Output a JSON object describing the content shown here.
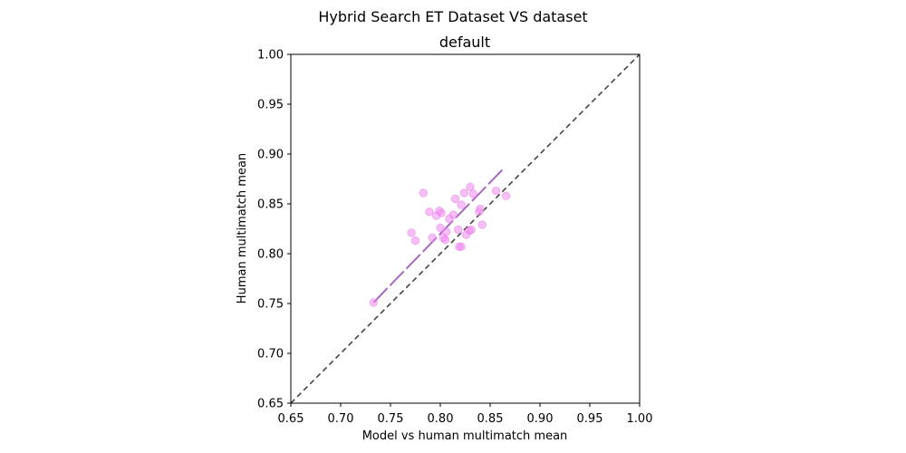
{
  "chart_data": {
    "type": "scatter",
    "title": "Hybrid Search ET Dataset VS dataset",
    "subtitle": "default",
    "xlabel": "Model vs human multimatch mean",
    "ylabel": "Human multimatch mean",
    "xlim": [
      0.65,
      1.0
    ],
    "ylim": [
      0.65,
      1.0
    ],
    "xticks": [
      "0.65",
      "0.70",
      "0.75",
      "0.80",
      "0.85",
      "0.90",
      "0.95",
      "1.00"
    ],
    "yticks": [
      "0.65",
      "0.70",
      "0.75",
      "0.80",
      "0.85",
      "0.90",
      "0.95",
      "1.00"
    ],
    "grid": false,
    "points": [
      {
        "x": 0.733,
        "y": 0.751
      },
      {
        "x": 0.771,
        "y": 0.821
      },
      {
        "x": 0.775,
        "y": 0.813
      },
      {
        "x": 0.783,
        "y": 0.861
      },
      {
        "x": 0.789,
        "y": 0.842
      },
      {
        "x": 0.792,
        "y": 0.816
      },
      {
        "x": 0.796,
        "y": 0.838
      },
      {
        "x": 0.799,
        "y": 0.843
      },
      {
        "x": 0.8,
        "y": 0.826
      },
      {
        "x": 0.801,
        "y": 0.841
      },
      {
        "x": 0.803,
        "y": 0.816
      },
      {
        "x": 0.805,
        "y": 0.814
      },
      {
        "x": 0.806,
        "y": 0.822
      },
      {
        "x": 0.809,
        "y": 0.835
      },
      {
        "x": 0.813,
        "y": 0.839
      },
      {
        "x": 0.815,
        "y": 0.855
      },
      {
        "x": 0.818,
        "y": 0.824
      },
      {
        "x": 0.819,
        "y": 0.807
      },
      {
        "x": 0.821,
        "y": 0.807
      },
      {
        "x": 0.821,
        "y": 0.849
      },
      {
        "x": 0.824,
        "y": 0.861
      },
      {
        "x": 0.826,
        "y": 0.819
      },
      {
        "x": 0.829,
        "y": 0.823
      },
      {
        "x": 0.83,
        "y": 0.867
      },
      {
        "x": 0.831,
        "y": 0.824
      },
      {
        "x": 0.833,
        "y": 0.86
      },
      {
        "x": 0.839,
        "y": 0.842
      },
      {
        "x": 0.84,
        "y": 0.845
      },
      {
        "x": 0.842,
        "y": 0.829
      },
      {
        "x": 0.856,
        "y": 0.863
      },
      {
        "x": 0.866,
        "y": 0.858
      }
    ],
    "regression_line": {
      "x": [
        0.733,
        0.864
      ],
      "y": [
        0.751,
        0.886
      ]
    },
    "reference_line": {
      "x": [
        0.65,
        1.0
      ],
      "y": [
        0.65,
        1.0
      ]
    },
    "colors": {
      "points": "#ee82ee",
      "regression": "#9b59b6",
      "reference": "#444444"
    }
  }
}
